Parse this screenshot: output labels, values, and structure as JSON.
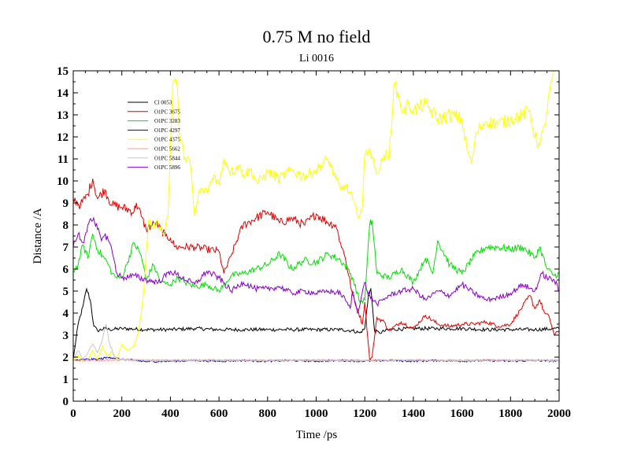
{
  "chart_data": {
    "type": "line",
    "title": "0.75 M no field",
    "subtitle": "Li 0016",
    "xlabel": "Time /ps",
    "ylabel": "Distance /A",
    "xlim": [
      0,
      2000
    ],
    "ylim": [
      0,
      15
    ],
    "xticks": [
      0,
      200,
      400,
      600,
      800,
      1000,
      1200,
      1400,
      1600,
      1800,
      2000
    ],
    "yticks": [
      0,
      1,
      2,
      3,
      4,
      5,
      6,
      7,
      8,
      9,
      10,
      11,
      12,
      13,
      14,
      15
    ],
    "legend_position": "top-left",
    "series": [
      {
        "name": "Cl 0053",
        "color": "#000000",
        "x": [
          0,
          20,
          40,
          55,
          70,
          85,
          100,
          130,
          150,
          200,
          300,
          400,
          500,
          600,
          700,
          800,
          900,
          1000,
          1100,
          1150,
          1180,
          1200,
          1215,
          1225,
          1240,
          1260,
          1300,
          1400,
          1500,
          1600,
          1700,
          1800,
          1900,
          2000
        ],
        "y": [
          1.9,
          3.5,
          4.3,
          5.1,
          4.6,
          3.4,
          3.2,
          3.3,
          3.25,
          3.3,
          3.25,
          3.25,
          3.3,
          3.25,
          3.25,
          3.25,
          3.25,
          3.25,
          3.25,
          3.2,
          3.1,
          3.3,
          4.8,
          5.1,
          3.2,
          3.1,
          3.25,
          3.3,
          3.3,
          3.3,
          3.25,
          3.25,
          3.25,
          3.3
        ]
      },
      {
        "name": "O1PC 3675",
        "color": "#e00000",
        "x": [
          0,
          30,
          60,
          80,
          100,
          130,
          160,
          200,
          250,
          260,
          280,
          300,
          340,
          380,
          400,
          420,
          450,
          500,
          550,
          600,
          620,
          650,
          680,
          700,
          750,
          800,
          850,
          900,
          950,
          1000,
          1050,
          1080,
          1100,
          1120,
          1150,
          1170,
          1190,
          1200,
          1220,
          1230,
          1250,
          1280,
          1300,
          1350,
          1400,
          1450,
          1500,
          1550,
          1600,
          1650,
          1700,
          1750,
          1800,
          1850,
          1880,
          1900,
          1920,
          1940,
          1960,
          1980,
          2000
        ],
        "y": [
          9.2,
          8.9,
          9.4,
          10.1,
          9.2,
          9.6,
          8.9,
          8.8,
          8.6,
          9.0,
          8.4,
          7.8,
          8.1,
          7.5,
          7.4,
          7.0,
          7.0,
          7.0,
          6.9,
          6.8,
          5.8,
          6.6,
          7.5,
          8.0,
          8.3,
          8.6,
          8.1,
          8.3,
          8.0,
          8.5,
          8.1,
          8.0,
          7.2,
          6.5,
          4.8,
          4.2,
          3.5,
          4.5,
          1.9,
          2.0,
          3.8,
          3.6,
          3.2,
          3.6,
          3.3,
          3.9,
          3.5,
          3.4,
          3.5,
          3.5,
          3.6,
          3.4,
          3.5,
          4.3,
          4.8,
          4.2,
          4.6,
          4.0,
          3.8,
          3.0,
          3.2
        ]
      },
      {
        "name": "O1PC 3283",
        "color": "#00e000",
        "x": [
          0,
          20,
          40,
          60,
          80,
          100,
          120,
          140,
          160,
          180,
          200,
          220,
          250,
          280,
          300,
          330,
          360,
          400,
          430,
          460,
          500,
          550,
          600,
          650,
          700,
          750,
          800,
          850,
          900,
          950,
          1000,
          1050,
          1100,
          1130,
          1150,
          1180,
          1200,
          1220,
          1230,
          1250,
          1300,
          1350,
          1400,
          1450,
          1480,
          1500,
          1550,
          1600,
          1650,
          1700,
          1750,
          1800,
          1850,
          1900,
          1920,
          1950,
          1980,
          2000
        ],
        "y": [
          5.9,
          6.2,
          7.1,
          6.5,
          7.6,
          6.9,
          6.6,
          6.3,
          5.8,
          5.6,
          5.6,
          6.2,
          7.2,
          6.6,
          5.5,
          6.2,
          5.4,
          5.3,
          5.6,
          5.4,
          5.2,
          5.3,
          5.0,
          5.7,
          5.8,
          6.0,
          6.2,
          6.7,
          6.0,
          6.4,
          6.3,
          6.7,
          6.4,
          6.0,
          5.6,
          4.5,
          4.6,
          8.0,
          8.2,
          5.8,
          5.6,
          6.0,
          5.4,
          6.5,
          5.8,
          7.3,
          6.2,
          5.8,
          6.6,
          7.0,
          7.0,
          6.9,
          7.0,
          6.5,
          7.0,
          6.0,
          5.7,
          5.8
        ]
      },
      {
        "name": "O1PC 4297",
        "color": "#0000cc",
        "x": [
          0,
          50,
          100,
          150,
          200,
          250,
          300,
          400,
          500,
          600,
          700,
          800,
          900,
          1000,
          1100,
          1200,
          1300,
          1400,
          1500,
          1600,
          1700,
          1800,
          1900,
          2000
        ],
        "y": [
          1.85,
          1.9,
          1.9,
          2.0,
          1.9,
          1.85,
          1.8,
          1.82,
          1.85,
          1.82,
          1.85,
          1.82,
          1.85,
          1.82,
          1.85,
          1.82,
          1.85,
          1.82,
          1.85,
          1.82,
          1.85,
          1.82,
          1.85,
          1.82
        ]
      },
      {
        "name": "O1PC 4375",
        "color": "#ffff00",
        "x": [
          0,
          20,
          40,
          60,
          80,
          100,
          120,
          140,
          160,
          180,
          200,
          220,
          250,
          270,
          290,
          310,
          330,
          350,
          370,
          390,
          410,
          425,
          440,
          460,
          480,
          500,
          520,
          550,
          580,
          600,
          620,
          650,
          680,
          700,
          730,
          760,
          800,
          850,
          900,
          950,
          1000,
          1050,
          1080,
          1100,
          1120,
          1150,
          1170,
          1190,
          1200,
          1220,
          1240,
          1260,
          1280,
          1300,
          1320,
          1340,
          1360,
          1380,
          1400,
          1450,
          1500,
          1550,
          1600,
          1620,
          1640,
          1660,
          1680,
          1700,
          1750,
          1800,
          1850,
          1880,
          1900,
          1920,
          1940,
          1960,
          1980,
          2000
        ],
        "y": [
          1.8,
          2.1,
          1.8,
          1.9,
          2.3,
          1.9,
          2.5,
          2.0,
          2.3,
          1.9,
          2.6,
          2.3,
          2.5,
          3.2,
          5.0,
          8.2,
          7.9,
          8.1,
          7.6,
          8.4,
          14.5,
          14.6,
          11.8,
          11.1,
          10.9,
          8.4,
          9.6,
          9.5,
          10.3,
          9.8,
          11.0,
          10.4,
          10.7,
          10.3,
          10.5,
          9.9,
          10.4,
          10.1,
          10.5,
          10.2,
          10.5,
          11.0,
          10.1,
          9.6,
          9.8,
          9.2,
          8.4,
          8.8,
          11.2,
          11.5,
          10.6,
          10.5,
          11.2,
          11.0,
          14.4,
          13.8,
          13.1,
          13.5,
          13.2,
          13.5,
          12.8,
          13.0,
          12.8,
          11.5,
          10.8,
          12.2,
          12.5,
          12.7,
          12.6,
          12.8,
          13.0,
          13.2,
          12.0,
          11.6,
          12.5,
          14.0,
          15.0,
          15.2
        ]
      },
      {
        "name": "O1PC 5662",
        "color": "#ff9999",
        "x": [
          0,
          200,
          400,
          600,
          800,
          1000,
          1200,
          1400,
          1600,
          1800,
          2000
        ],
        "y": [
          1.85,
          1.87,
          1.85,
          1.86,
          1.85,
          1.86,
          1.85,
          1.86,
          1.85,
          1.86,
          1.85
        ]
      },
      {
        "name": "O1PC 5844",
        "color": "#c8c8c8",
        "x": [
          0,
          20,
          40,
          60,
          80,
          100,
          120,
          135,
          150,
          170,
          200,
          400,
          600,
          800,
          1000,
          1200,
          1400,
          1600,
          1800,
          2000
        ],
        "y": [
          1.9,
          2.3,
          1.9,
          2.2,
          2.6,
          2.2,
          2.8,
          3.5,
          2.6,
          2.0,
          1.9,
          1.85,
          1.86,
          1.85,
          1.86,
          1.85,
          1.86,
          1.85,
          1.86,
          1.85
        ]
      },
      {
        "name": "O1PC 5896",
        "color": "#8800cc",
        "x": [
          0,
          20,
          40,
          60,
          80,
          100,
          120,
          140,
          160,
          180,
          200,
          250,
          300,
          350,
          400,
          450,
          500,
          550,
          600,
          650,
          700,
          750,
          800,
          850,
          900,
          950,
          1000,
          1050,
          1100,
          1120,
          1140,
          1150,
          1170,
          1200,
          1210,
          1220,
          1250,
          1300,
          1350,
          1400,
          1450,
          1500,
          1550,
          1600,
          1650,
          1700,
          1750,
          1800,
          1850,
          1900,
          1930,
          1950,
          1980,
          2000
        ],
        "y": [
          7.0,
          7.6,
          7.2,
          8.0,
          8.2,
          7.8,
          7.4,
          7.5,
          6.8,
          5.8,
          5.6,
          5.7,
          5.5,
          5.4,
          5.9,
          5.6,
          5.3,
          5.9,
          5.6,
          5.0,
          5.4,
          5.1,
          5.1,
          5.2,
          4.9,
          5.0,
          4.9,
          5.0,
          4.9,
          4.6,
          4.2,
          5.0,
          4.0,
          5.4,
          5.0,
          4.8,
          4.4,
          4.8,
          5.0,
          5.1,
          4.6,
          5.0,
          4.8,
          5.3,
          4.9,
          4.6,
          4.7,
          4.9,
          5.3,
          5.0,
          5.8,
          5.6,
          5.5,
          5.0
        ]
      }
    ]
  }
}
